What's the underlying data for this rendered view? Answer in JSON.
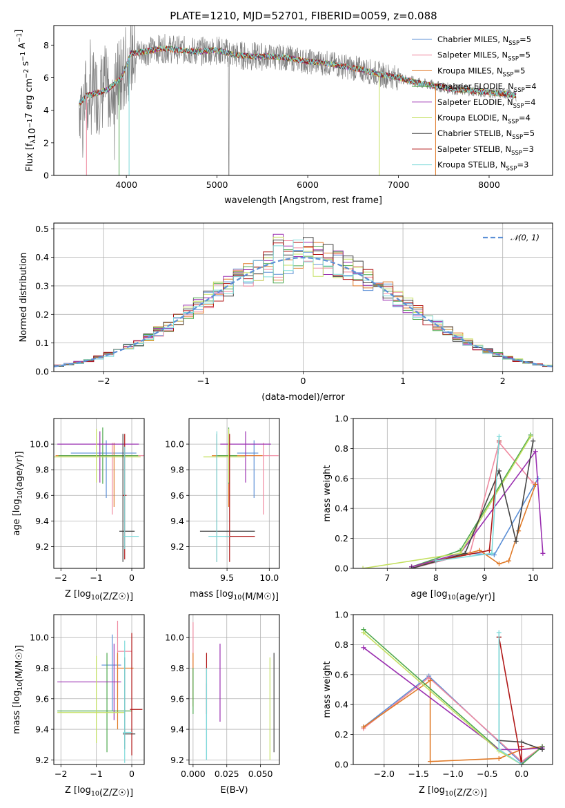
{
  "page_title": "PLATE=1210, MJD=52701, FIBERID=0059, z=0.088",
  "series": [
    {
      "key": "chab_miles",
      "color": "#5b8fd6"
    },
    {
      "key": "salp_miles",
      "color": "#f08aa0"
    },
    {
      "key": "krou_miles",
      "color": "#e07a28"
    },
    {
      "key": "chab_elodie",
      "color": "#4ea84e"
    },
    {
      "key": "salp_elodie",
      "color": "#9a2fb0"
    },
    {
      "key": "krou_elodie",
      "color": "#c4e060"
    },
    {
      "key": "chab_stelib",
      "color": "#444444"
    },
    {
      "key": "salp_stelib",
      "color": "#b01818"
    },
    {
      "key": "krou_stelib",
      "color": "#7edada"
    }
  ],
  "chart_data": [
    {
      "id": "spectrum",
      "type": "line",
      "xlabel": "wavelength [Angstrom, rest frame]",
      "ylabel": "Flux [f_λ10^-17 erg cm^-2 s^-1 A^-1]",
      "xlim": [
        3200,
        8700
      ],
      "ylim": [
        0,
        9.2
      ],
      "xticks": [
        4000,
        5000,
        6000,
        7000,
        8000
      ],
      "yticks": [
        0,
        2,
        4,
        6,
        8
      ],
      "grid": false,
      "legend_position": "top-right",
      "legend": [
        {
          "label": "Chabrier MILES, N",
          "sub": "SSP",
          "eq": "=5"
        },
        {
          "label": "Salpeter MILES, N",
          "sub": "SSP",
          "eq": "=5"
        },
        {
          "label": "Kroupa MILES, N",
          "sub": "SSP",
          "eq": "=5"
        },
        {
          "label": "Chabrier ELODIE, N",
          "sub": "SSP",
          "eq": "=4"
        },
        {
          "label": "Salpeter ELODIE, N",
          "sub": "SSP",
          "eq": "=4"
        },
        {
          "label": "Kroupa ELODIE, N",
          "sub": "SSP",
          "eq": "=4"
        },
        {
          "label": "Chabrier STELIB, N",
          "sub": "SSP",
          "eq": "=5"
        },
        {
          "label": "Salpeter STELIB, N",
          "sub": "SSP",
          "eq": "=3"
        },
        {
          "label": "Kroupa STELIB, N",
          "sub": "SSP",
          "eq": "=3"
        }
      ],
      "model_continuum": [
        [
          3480,
          4.4
        ],
        [
          3560,
          4.9
        ],
        [
          3700,
          5.1
        ],
        [
          3800,
          5.3
        ],
        [
          3950,
          6.0
        ],
        [
          4050,
          7.5
        ],
        [
          4200,
          7.6
        ],
        [
          4400,
          7.8
        ],
        [
          4600,
          7.7
        ],
        [
          4800,
          7.6
        ],
        [
          5000,
          7.7
        ],
        [
          5200,
          7.4
        ],
        [
          5400,
          7.3
        ],
        [
          5600,
          7.3
        ],
        [
          5800,
          7.2
        ],
        [
          6000,
          7.0
        ],
        [
          6200,
          6.9
        ],
        [
          6400,
          6.7
        ],
        [
          6600,
          6.5
        ],
        [
          6800,
          6.2
        ],
        [
          7000,
          6.0
        ],
        [
          7200,
          5.7
        ],
        [
          7400,
          5.5
        ],
        [
          7600,
          5.3
        ],
        [
          7800,
          5.2
        ],
        [
          8000,
          5.1
        ],
        [
          8200,
          5.0
        ],
        [
          8300,
          4.9
        ]
      ]
    },
    {
      "id": "residuals",
      "type": "histogram",
      "xlabel": "(data-model)/error",
      "ylabel": "Normed distribution",
      "xlim": [
        -2.5,
        2.5
      ],
      "ylim": [
        0,
        0.52
      ],
      "xticks": [
        -2,
        -1,
        0,
        1,
        2
      ],
      "yticks": [
        0.0,
        0.1,
        0.2,
        0.3,
        0.4,
        0.5
      ],
      "grid": true,
      "legend_position": "top-right",
      "reference_label": "N(0,1)"
    },
    {
      "id": "age_vs_Z",
      "type": "errorbar",
      "xlabel": "Z [log10(Z/Z☉)]",
      "ylabel": "age  [log10(age/yr)]",
      "xlim": [
        -2.2,
        0.35
      ],
      "ylim": [
        9.03,
        10.2
      ],
      "xticks": [
        -2,
        -1,
        0
      ],
      "yticks": [
        9.2,
        9.4,
        9.6,
        9.8,
        10.0
      ],
      "points": [
        {
          "s": 0,
          "x": -0.72,
          "xlo": 1.0,
          "xhi": 0.85,
          "y": 9.93,
          "ylo": 0.35,
          "yhi": 0.1
        },
        {
          "s": 1,
          "x": -0.55,
          "xlo": 0.9,
          "xhi": 0.9,
          "y": 9.91,
          "ylo": 0.46,
          "yhi": 0.1
        },
        {
          "s": 2,
          "x": -0.5,
          "xlo": 1.65,
          "xhi": 0.5,
          "y": 9.91,
          "ylo": 0.4,
          "yhi": 0.1
        },
        {
          "s": 3,
          "x": -0.82,
          "xlo": 1.25,
          "xhi": 1.0,
          "y": 9.91,
          "ylo": 0.22,
          "yhi": 0.22
        },
        {
          "s": 4,
          "x": -0.9,
          "xlo": 1.2,
          "xhi": 1.1,
          "y": 10.0,
          "ylo": 0.3,
          "yhi": 0.1
        },
        {
          "s": 5,
          "x": -1.0,
          "xlo": 1.2,
          "xhi": 1.25,
          "y": 9.9,
          "ylo": 0.2,
          "yhi": 0.22
        },
        {
          "s": 6,
          "x": -0.25,
          "xlo": 0.1,
          "xhi": 0.33,
          "y": 9.32,
          "ylo": 0.24,
          "yhi": 0.76
        },
        {
          "s": 7,
          "x": -0.2,
          "xlo": 0.05,
          "xhi": 0.05,
          "y": 9.6,
          "ylo": 0.5,
          "yhi": 0.48
        },
        {
          "s": 8,
          "x": -0.2,
          "xlo": 0.05,
          "xhi": 0.4,
          "y": 9.28,
          "ylo": 0.1,
          "yhi": 0.7
        }
      ]
    },
    {
      "id": "age_vs_mass",
      "type": "errorbar",
      "xlabel": "mass [log10(M/M☉)]",
      "ylabel": "",
      "xlim": [
        9.05,
        10.12
      ],
      "ylim": [
        9.03,
        10.2
      ],
      "xticks": [
        9.5,
        10.0
      ],
      "yticks": [
        9.2,
        9.4,
        9.6,
        9.8,
        10.0
      ],
      "points": [
        {
          "s": 0,
          "x": 9.82,
          "xlo": 0.2,
          "xhi": 0.05,
          "y": 9.93,
          "ylo": 0.35,
          "yhi": 0.1
        },
        {
          "s": 1,
          "x": 9.93,
          "xlo": 0.2,
          "xhi": 0.18,
          "y": 9.91,
          "ylo": 0.46,
          "yhi": 0.1
        },
        {
          "s": 2,
          "x": 9.52,
          "xlo": 0.2,
          "xhi": 0.4,
          "y": 9.91,
          "ylo": 0.4,
          "yhi": 0.1
        },
        {
          "s": 3,
          "x": 9.52,
          "xlo": 0.15,
          "xhi": 0.1,
          "y": 9.91,
          "ylo": 0.22,
          "yhi": 0.22
        },
        {
          "s": 4,
          "x": 9.72,
          "xlo": 0.3,
          "xhi": 0.3,
          "y": 10.0,
          "ylo": 0.3,
          "yhi": 0.1
        },
        {
          "s": 5,
          "x": 9.52,
          "xlo": 0.3,
          "xhi": 0.2,
          "y": 9.9,
          "ylo": 0.2,
          "yhi": 0.22
        },
        {
          "s": 6,
          "x": 9.38,
          "xlo": 0.2,
          "xhi": 0.45,
          "y": 9.32,
          "ylo": 0.24,
          "yhi": 0.76
        },
        {
          "s": 7,
          "x": 9.53,
          "xlo": 0.05,
          "xhi": 0.3,
          "y": 9.28,
          "ylo": 0.2,
          "yhi": 0.8
        },
        {
          "s": 8,
          "x": 9.38,
          "xlo": 0.1,
          "xhi": 0.15,
          "y": 9.28,
          "ylo": 0.2,
          "yhi": 0.82
        }
      ]
    },
    {
      "id": "weight_vs_age",
      "type": "line",
      "xlabel": "age  [log10(age/yr)]",
      "ylabel": "mass weight",
      "xlim": [
        6.3,
        10.4
      ],
      "ylim": [
        0,
        1.0
      ],
      "xticks": [
        7,
        8,
        9,
        10
      ],
      "yticks": [
        0.0,
        0.2,
        0.4,
        0.6,
        0.8,
        1.0
      ],
      "grid": true,
      "lines": [
        {
          "s": 0,
          "x": [
            7.5,
            8.7,
            9.2,
            10.1
          ],
          "y": [
            0.0,
            0.1,
            0.09,
            0.6
          ]
        },
        {
          "s": 1,
          "x": [
            7.5,
            8.7,
            9.3,
            10.0
          ],
          "y": [
            0.0,
            0.1,
            0.84,
            0.57
          ]
        },
        {
          "s": 2,
          "x": [
            7.5,
            8.9,
            9.3,
            9.5,
            9.7,
            10.05
          ],
          "y": [
            0.01,
            0.12,
            0.03,
            0.05,
            0.25,
            0.56
          ]
        },
        {
          "s": 3,
          "x": [
            7.5,
            8.5,
            9.95
          ],
          "y": [
            0.01,
            0.12,
            0.89
          ]
        },
        {
          "s": 4,
          "x": [
            7.5,
            8.5,
            10.05,
            10.2
          ],
          "y": [
            0.01,
            0.1,
            0.78,
            0.1
          ]
        },
        {
          "s": 5,
          "x": [
            6.5,
            8.5,
            9.95
          ],
          "y": [
            0.0,
            0.1,
            0.88
          ]
        },
        {
          "s": 6,
          "x": [
            7.5,
            8.6,
            9.3,
            9.65,
            10.0
          ],
          "y": [
            0.0,
            0.1,
            0.65,
            0.18,
            0.85
          ]
        },
        {
          "s": 7,
          "x": [
            8.0,
            9.1,
            9.3
          ],
          "y": [
            0.05,
            0.12,
            0.85
          ]
        },
        {
          "s": 8,
          "x": [
            8.0,
            9.15,
            9.3
          ],
          "y": [
            0.05,
            0.1,
            0.88
          ]
        }
      ]
    },
    {
      "id": "mass_vs_Z",
      "type": "errorbar",
      "xlabel": "Z [log10(Z/Z☉)]",
      "ylabel": "mass [log10(M/M☉)]",
      "xlim": [
        -2.2,
        0.35
      ],
      "ylim": [
        9.17,
        10.15
      ],
      "xticks": [
        -2,
        -1,
        0
      ],
      "yticks": [
        9.2,
        9.4,
        9.6,
        9.8,
        10.0
      ],
      "points": [
        {
          "s": 0,
          "x": -0.55,
          "xlo": 0.3,
          "xhi": 0.25,
          "y": 9.82,
          "ylo": 0.3,
          "yhi": 0.2
        },
        {
          "s": 1,
          "x": -0.4,
          "xlo": 0.0,
          "xhi": 0.4,
          "y": 9.91,
          "ylo": 0.3,
          "yhi": 0.2
        },
        {
          "s": 2,
          "x": -0.4,
          "xlo": 0.0,
          "xhi": 0.45,
          "y": 9.8,
          "ylo": 0.4,
          "yhi": 0.1
        },
        {
          "s": 3,
          "x": -0.7,
          "xlo": 1.4,
          "xhi": 0.7,
          "y": 9.52,
          "ylo": 0.27,
          "yhi": 0.38
        },
        {
          "s": 4,
          "x": -0.5,
          "xlo": 1.6,
          "xhi": 0.2,
          "y": 9.71,
          "ylo": 0.25,
          "yhi": 0.25
        },
        {
          "s": 5,
          "x": -1.0,
          "xlo": 1.1,
          "xhi": 0.8,
          "y": 9.51,
          "ylo": 0.2,
          "yhi": 0.37
        },
        {
          "s": 6,
          "x": -0.2,
          "xlo": 0.05,
          "xhi": 0.3,
          "y": 9.37,
          "ylo": 0.1,
          "yhi": 0.5
        },
        {
          "s": 7,
          "x": 0.0,
          "xlo": 0.05,
          "xhi": 0.3,
          "y": 9.53,
          "ylo": 0.3,
          "yhi": 0.5
        },
        {
          "s": 8,
          "x": -0.2,
          "xlo": 0.05,
          "xhi": 0.2,
          "y": 9.38,
          "ylo": 0.2,
          "yhi": 0.6
        }
      ]
    },
    {
      "id": "mass_vs_ebv",
      "type": "errorbar",
      "xlabel": "E(B-V)",
      "ylabel": "",
      "xlim": [
        -0.003,
        0.064
      ],
      "ylim": [
        9.17,
        10.15
      ],
      "xticks": [
        0.0,
        0.025,
        0.05
      ],
      "xtick_labels": [
        "0.000",
        "0.025",
        "0.050"
      ],
      "yticks": [
        9.2,
        9.4,
        9.6,
        9.8,
        10.0
      ],
      "points": [
        {
          "s": 0,
          "x": 0.01,
          "y": 9.5,
          "ylo": 0.3,
          "yhi": 0.2
        },
        {
          "s": 1,
          "x": 0.0,
          "y": 9.9,
          "ylo": 0.3,
          "yhi": 0.2
        },
        {
          "s": 2,
          "x": 0.0,
          "y": 9.8,
          "ylo": 0.25,
          "yhi": 0.1
        },
        {
          "s": 3,
          "x": 0.0,
          "y": 9.7,
          "ylo": 0.2,
          "yhi": 0.1
        },
        {
          "s": 4,
          "x": 0.02,
          "y": 9.72,
          "ylo": 0.27,
          "yhi": 0.24
        },
        {
          "s": 5,
          "x": 0.057,
          "y": 9.55,
          "ylo": 0.35,
          "yhi": 0.32
        },
        {
          "s": 6,
          "x": 0.06,
          "y": 9.55,
          "ylo": 0.3,
          "yhi": 0.35
        },
        {
          "s": 7,
          "x": 0.01,
          "y": 9.8,
          "ylo": 0.3,
          "yhi": 0.1
        },
        {
          "s": 8,
          "x": 0.01,
          "y": 9.5,
          "ylo": 0.3,
          "yhi": 0.3
        }
      ]
    },
    {
      "id": "weight_vs_Z",
      "type": "line",
      "xlabel": "Z [log10(Z/Z☉)]",
      "ylabel": "mass weight",
      "xlim": [
        -2.45,
        0.45
      ],
      "ylim": [
        0,
        1.0
      ],
      "xticks": [
        -2.0,
        -1.5,
        -1.0,
        -0.5,
        0.0
      ],
      "xtick_labels": [
        "−2.0",
        "−1.5",
        "−1.0",
        "−0.5",
        "0.0"
      ],
      "yticks": [
        0.0,
        0.2,
        0.4,
        0.6,
        0.8,
        1.0
      ],
      "grid": true,
      "lines": [
        {
          "s": 0,
          "x": [
            -2.3,
            -1.35,
            0.0,
            0.3
          ],
          "y": [
            0.25,
            0.59,
            0.01,
            0.12
          ]
        },
        {
          "s": 1,
          "x": [
            -2.3,
            -1.35,
            0.0,
            0.3
          ],
          "y": [
            0.24,
            0.58,
            0.02,
            0.12
          ]
        },
        {
          "s": 2,
          "x": [
            -2.3,
            -1.33,
            -1.33,
            -0.33,
            0.0,
            0.3
          ],
          "y": [
            0.25,
            0.56,
            0.02,
            0.04,
            0.1,
            0.12
          ]
        },
        {
          "s": 3,
          "x": [
            -2.3,
            -0.33,
            0.0,
            0.3
          ],
          "y": [
            0.9,
            0.1,
            0.0,
            0.12
          ]
        },
        {
          "s": 4,
          "x": [
            -2.3,
            -0.33,
            0.0,
            0.3
          ],
          "y": [
            0.78,
            0.1,
            0.1,
            0.11
          ]
        },
        {
          "s": 5,
          "x": [
            -2.3,
            -0.33,
            0.0
          ],
          "y": [
            0.88,
            0.09,
            0.0
          ]
        },
        {
          "s": 6,
          "x": [
            -0.33,
            -0.33,
            0.0,
            0.3
          ],
          "y": [
            0.85,
            0.16,
            0.15,
            0.1
          ]
        },
        {
          "s": 7,
          "x": [
            -0.33,
            0.0,
            0.0
          ],
          "y": [
            0.85,
            0.0,
            0.12
          ]
        },
        {
          "s": 8,
          "x": [
            -0.33,
            -0.33,
            0.0
          ],
          "y": [
            0.88,
            0.1,
            0.0
          ]
        }
      ]
    }
  ]
}
